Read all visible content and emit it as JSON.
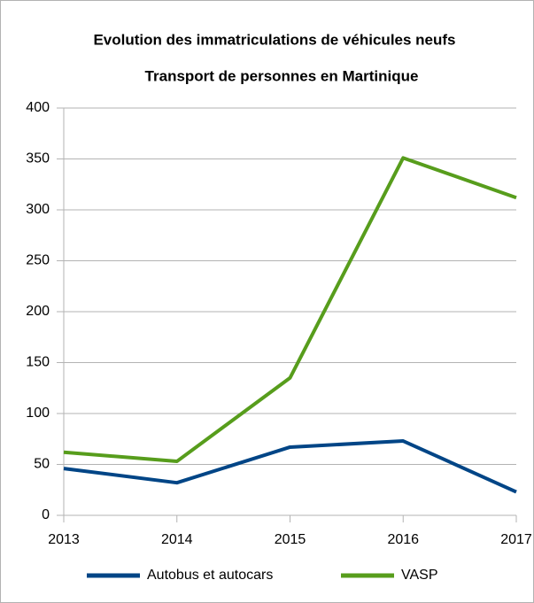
{
  "chart_data": {
    "type": "line",
    "title": "Evolution des immatriculations de véhicules neufs",
    "subtitle": "Transport de personnes en Martinique",
    "categories": [
      "2013",
      "2014",
      "2015",
      "2016",
      "2017"
    ],
    "series": [
      {
        "name": "Autobus et autocars",
        "color": "#004586",
        "values": [
          46,
          32,
          67,
          73,
          23
        ]
      },
      {
        "name": "VASP",
        "color": "#579d1c",
        "values": [
          62,
          53,
          135,
          351,
          312
        ]
      }
    ],
    "ylim": [
      0,
      400
    ],
    "yticks": [
      0,
      50,
      100,
      150,
      200,
      250,
      300,
      350,
      400
    ],
    "grid": true,
    "legend": "bottom"
  }
}
